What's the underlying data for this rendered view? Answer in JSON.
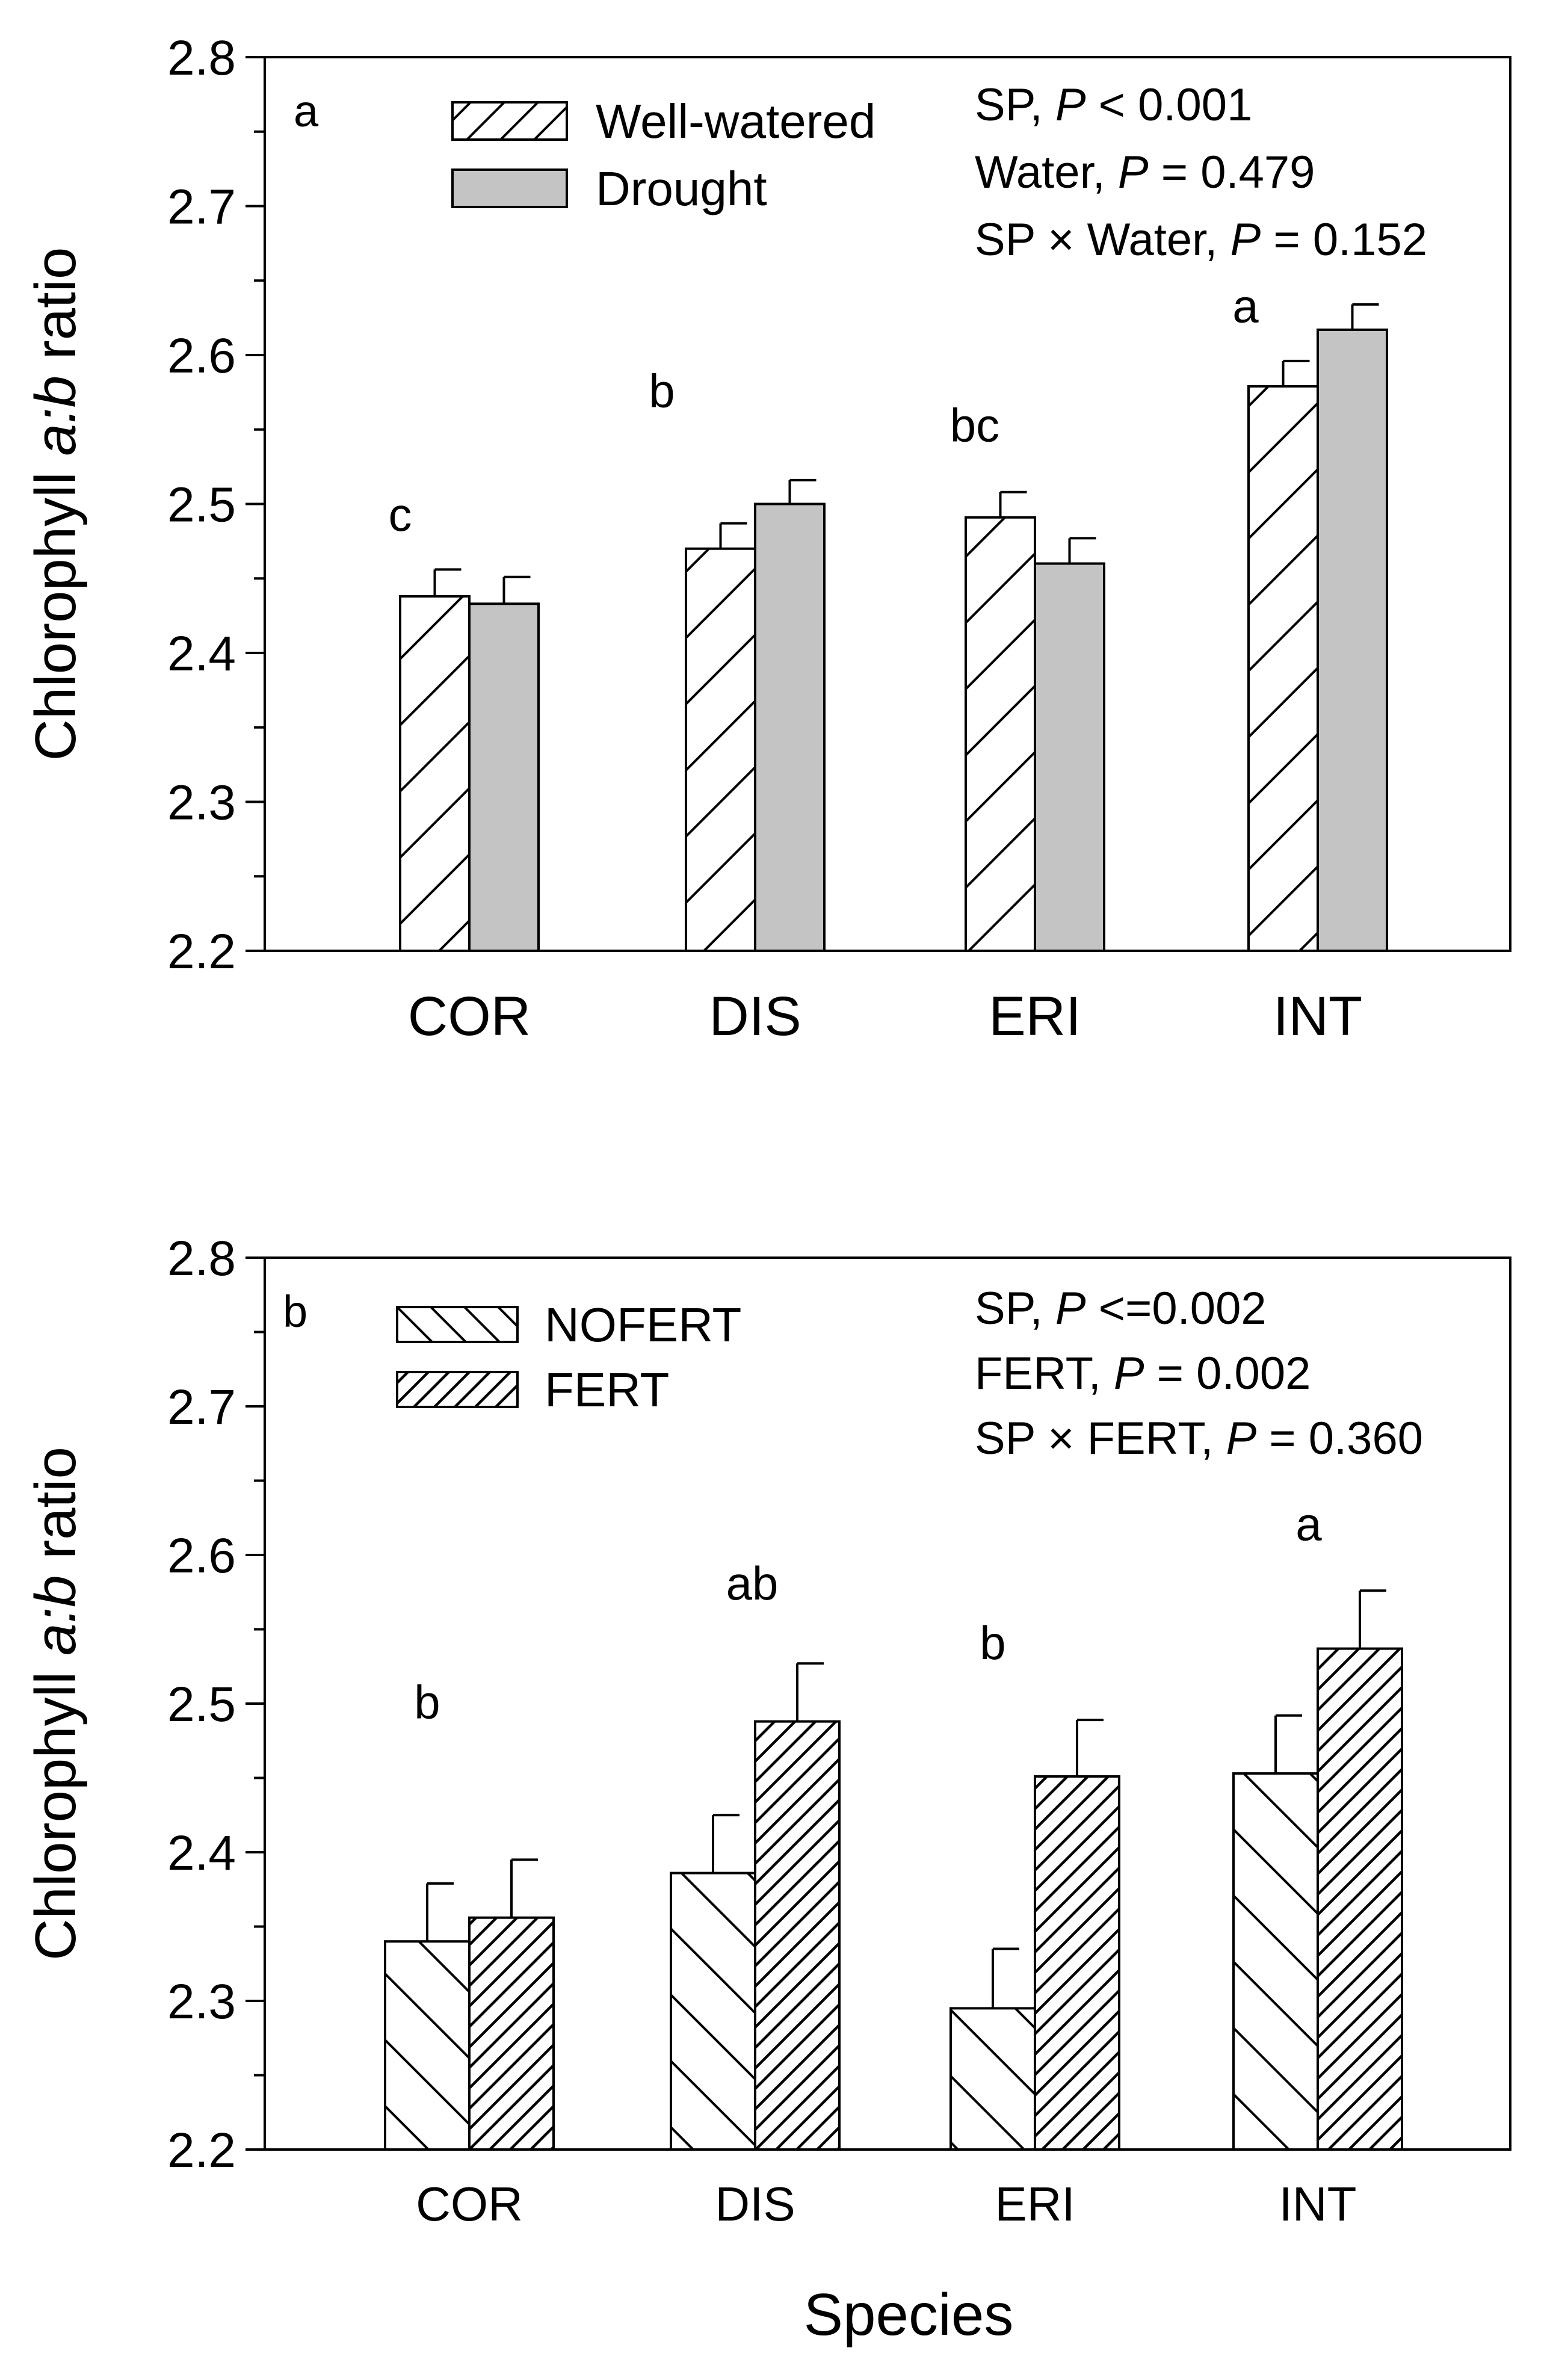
{
  "chart_data": [
    {
      "type": "bar",
      "panel_label": "a",
      "categories": [
        "COR",
        "DIS",
        "ERI",
        "INT"
      ],
      "ylabel": "Chlorophyll a:b ratio",
      "ylabel_parts": [
        "Chlorophyll ",
        "a:b",
        " ratio"
      ],
      "xlabel": "",
      "ylim": [
        2.2,
        2.8
      ],
      "yticks": [
        "2.2",
        "2.3",
        "2.4",
        "2.5",
        "2.6",
        "2.7",
        "2.8"
      ],
      "legend_position": "top-center",
      "series": [
        {
          "name": "Well-watered",
          "pattern": "hatch-forward",
          "values": [
            2.438,
            2.47,
            2.491,
            2.579
          ],
          "errors": [
            0.018,
            0.017,
            0.017,
            0.017
          ]
        },
        {
          "name": "Drought",
          "pattern": "solid-gray",
          "values": [
            2.433,
            2.5,
            2.46,
            2.617
          ],
          "errors": [
            0.018,
            0.016,
            0.017,
            0.017
          ]
        }
      ],
      "significance_letters": [
        "c",
        "b",
        "bc",
        "a"
      ],
      "stats": [
        {
          "pre": "SP, ",
          "p": "P",
          "post": " < 0.001"
        },
        {
          "pre": "Water, ",
          "p": "P",
          "post": " = 0.479"
        },
        {
          "pre": "SP × Water, ",
          "p": "P",
          "post": " = 0.152"
        }
      ]
    },
    {
      "type": "bar",
      "panel_label": "b",
      "categories": [
        "COR",
        "DIS",
        "ERI",
        "INT"
      ],
      "ylabel": "Chlorophyll a:b ratio",
      "ylabel_parts": [
        "Chlorophyll ",
        "a:b",
        " ratio"
      ],
      "xlabel": "Species",
      "ylim": [
        2.2,
        2.8
      ],
      "yticks": [
        "2.2",
        "2.3",
        "2.4",
        "2.5",
        "2.6",
        "2.7",
        "2.8"
      ],
      "legend_position": "top-center",
      "series": [
        {
          "name": "NOFERT",
          "pattern": "hatch-backward",
          "values": [
            2.34,
            2.386,
            2.295,
            2.453
          ],
          "errors": [
            0.039,
            0.039,
            0.04,
            0.039
          ]
        },
        {
          "name": "FERT",
          "pattern": "hatch-dense",
          "values": [
            2.356,
            2.488,
            2.451,
            2.537
          ],
          "errors": [
            0.039,
            0.039,
            0.038,
            0.039
          ]
        }
      ],
      "significance_letters": [
        "b",
        "ab",
        "b",
        "a"
      ],
      "stats": [
        {
          "pre": "SP, ",
          "p": "P",
          "post": " <=0.002"
        },
        {
          "pre": "FERT, ",
          "p": "P",
          "post": " = 0.002"
        },
        {
          "pre": "SP × FERT, ",
          "p": "P",
          "post": " = 0.360"
        }
      ]
    }
  ]
}
